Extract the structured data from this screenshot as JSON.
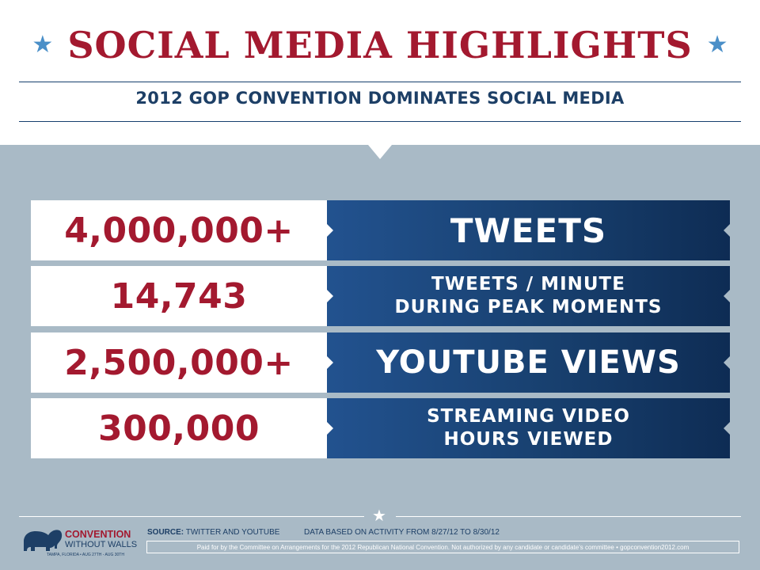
{
  "header": {
    "title": "SOCIAL MEDIA HIGHLIGHTS",
    "subtitle": "2012 GOP CONVENTION DOMINATES SOCIAL MEDIA",
    "star_color": "#4a8fc8"
  },
  "stats": [
    {
      "value": "4,000,000+",
      "label_lines": [
        "TWEETS"
      ]
    },
    {
      "value": "14,743",
      "label_lines": [
        "TWEETS / MINUTE",
        "DURING PEAK MOMENTS"
      ]
    },
    {
      "value": "2,500,000+",
      "label_lines": [
        "YOUTUBE VIEWS"
      ]
    },
    {
      "value": "300,000",
      "label_lines": [
        "STREAMING VIDEO",
        "HOURS VIEWED"
      ]
    }
  ],
  "footer": {
    "logo": {
      "line1": "CONVENTION",
      "line2": "WITHOUT WALLS",
      "line3": "TAMPA, FLORIDA • AUG 27TH - AUG 30TH",
      "icon": "elephant-icon"
    },
    "source_label": "SOURCE:",
    "source_text": "TWITTER AND YOUTUBE",
    "data_range": "DATA BASED ON ACTIVITY FROM 8/27/12 TO 8/30/12",
    "disclaimer": "Paid for by the Committee on Arrangements for the 2012 Republican National Convention. Not authorized by any candidate or candidate's committee • gopconvention2012.com"
  },
  "colors": {
    "accent_red": "#a3192f",
    "navy": "#1d3f66",
    "panel": "#a9bac6",
    "star_blue": "#4a8fc8"
  }
}
